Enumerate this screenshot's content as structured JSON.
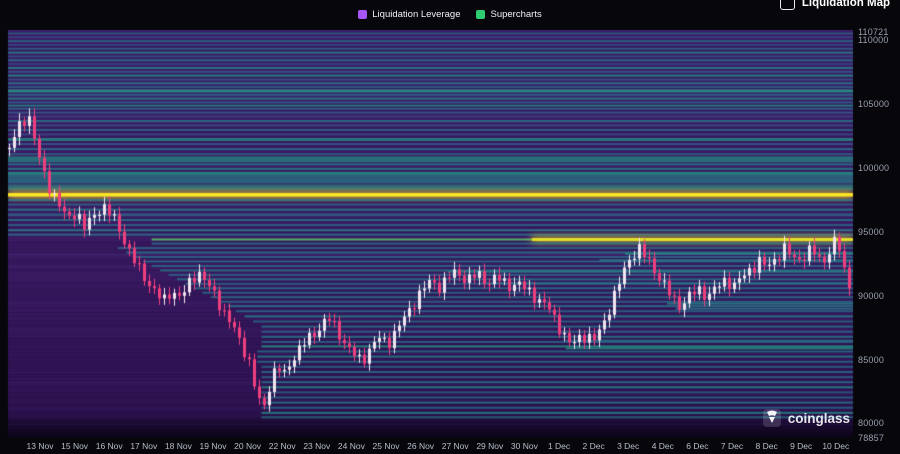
{
  "top_right": {
    "label": "Liquidation Map"
  },
  "legend": {
    "items": [
      {
        "label": "Liquidation Leverage",
        "color": "#a855f7"
      },
      {
        "label": "Supercharts",
        "color": "#2ecc71"
      }
    ]
  },
  "watermark": {
    "text": "coinglass"
  },
  "chart_data": {
    "type": "heatmap",
    "overlay": "candlestick",
    "colormap": "viridis",
    "title": "",
    "y_axis": {
      "min": 78857,
      "max": 110721,
      "labels": [
        110721,
        110000,
        105000,
        100000,
        95000,
        90000,
        85000,
        80000,
        78857
      ]
    },
    "x_axis": {
      "labels": [
        "13 Nov",
        "15 Nov",
        "16 Nov",
        "17 Nov",
        "18 Nov",
        "19 Nov",
        "20 Nov",
        "22 Nov",
        "23 Nov",
        "24 Nov",
        "25 Nov",
        "26 Nov",
        "27 Nov",
        "29 Nov",
        "30 Nov",
        "1 Dec",
        "2 Dec",
        "3 Dec",
        "4 Dec",
        "6 Dec",
        "7 Dec",
        "8 Dec",
        "9 Dec",
        "10 Dec"
      ]
    },
    "highlight_lines": [
      {
        "price": 97820,
        "color": "#f5ef3c",
        "note": "brightest liquidation cluster, full width"
      },
      {
        "price": 94320,
        "color": "#b8e03a",
        "note": "bright cluster from ~17 Nov to right edge"
      }
    ],
    "candle_colors": {
      "up": "#f3e6f0",
      "down": "#ef3f7d"
    },
    "background_color": "#38175f",
    "price_path": [
      [
        0.0,
        101500
      ],
      [
        0.008,
        102600
      ],
      [
        0.016,
        103600
      ],
      [
        0.022,
        104300
      ],
      [
        0.03,
        102200
      ],
      [
        0.038,
        99800
      ],
      [
        0.048,
        98400
      ],
      [
        0.058,
        97200
      ],
      [
        0.068,
        95800
      ],
      [
        0.079,
        96600
      ],
      [
        0.09,
        95100
      ],
      [
        0.1,
        96200
      ],
      [
        0.11,
        97000
      ],
      [
        0.121,
        96200
      ],
      [
        0.132,
        94900
      ],
      [
        0.142,
        93400
      ],
      [
        0.152,
        92100
      ],
      [
        0.162,
        91200
      ],
      [
        0.172,
        90300
      ],
      [
        0.182,
        89400
      ],
      [
        0.192,
        90400
      ],
      [
        0.203,
        89700
      ],
      [
        0.213,
        90900
      ],
      [
        0.223,
        91900
      ],
      [
        0.233,
        90900
      ],
      [
        0.245,
        89800
      ],
      [
        0.255,
        88500
      ],
      [
        0.265,
        87400
      ],
      [
        0.275,
        86100
      ],
      [
        0.284,
        84700
      ],
      [
        0.292,
        82300
      ],
      [
        0.3,
        80900
      ],
      [
        0.308,
        82900
      ],
      [
        0.316,
        84400
      ],
      [
        0.325,
        83700
      ],
      [
        0.335,
        85000
      ],
      [
        0.345,
        85900
      ],
      [
        0.355,
        86600
      ],
      [
        0.367,
        87400
      ],
      [
        0.377,
        88200
      ],
      [
        0.387,
        87300
      ],
      [
        0.397,
        86200
      ],
      [
        0.407,
        85300
      ],
      [
        0.417,
        84800
      ],
      [
        0.427,
        85800
      ],
      [
        0.437,
        86600
      ],
      [
        0.448,
        86200
      ],
      [
        0.458,
        87200
      ],
      [
        0.468,
        88200
      ],
      [
        0.478,
        89300
      ],
      [
        0.489,
        90400
      ],
      [
        0.5,
        91100
      ],
      [
        0.51,
        90600
      ],
      [
        0.52,
        91400
      ],
      [
        0.53,
        91800
      ],
      [
        0.542,
        91100
      ],
      [
        0.554,
        91600
      ],
      [
        0.565,
        91000
      ],
      [
        0.578,
        91300
      ],
      [
        0.59,
        90700
      ],
      [
        0.6,
        90900
      ],
      [
        0.612,
        90400
      ],
      [
        0.625,
        89700
      ],
      [
        0.64,
        88800
      ],
      [
        0.653,
        87200
      ],
      [
        0.665,
        85950
      ],
      [
        0.677,
        86900
      ],
      [
        0.693,
        86400
      ],
      [
        0.705,
        88100
      ],
      [
        0.716,
        89900
      ],
      [
        0.726,
        91600
      ],
      [
        0.734,
        92900
      ],
      [
        0.745,
        93550
      ],
      [
        0.755,
        92800
      ],
      [
        0.765,
        91800
      ],
      [
        0.775,
        90700
      ],
      [
        0.785,
        89700
      ],
      [
        0.795,
        89100
      ],
      [
        0.805,
        89900
      ],
      [
        0.816,
        90400
      ],
      [
        0.827,
        89900
      ],
      [
        0.838,
        90600
      ],
      [
        0.848,
        91200
      ],
      [
        0.858,
        90700
      ],
      [
        0.868,
        91400
      ],
      [
        0.878,
        92100
      ],
      [
        0.888,
        92600
      ],
      [
        0.897,
        92100
      ],
      [
        0.908,
        93000
      ],
      [
        0.918,
        93600
      ],
      [
        0.928,
        92800
      ],
      [
        0.938,
        92900
      ],
      [
        0.95,
        93500
      ],
      [
        0.962,
        92500
      ],
      [
        0.972,
        93600
      ],
      [
        0.98,
        94400
      ],
      [
        0.986,
        92300
      ],
      [
        0.993,
        91000
      ],
      [
        1.0,
        90200
      ]
    ],
    "liquidity_bands": [
      [
        110450,
        0,
        0.42,
        2
      ],
      [
        110150,
        0,
        0.3,
        2
      ],
      [
        109850,
        0,
        0.48,
        2
      ],
      [
        109550,
        0,
        0.34,
        2
      ],
      [
        109250,
        0,
        0.44,
        2
      ],
      [
        108950,
        0,
        0.56,
        2
      ],
      [
        108650,
        0,
        0.36,
        2
      ],
      [
        108350,
        0,
        0.5,
        2
      ],
      [
        108050,
        0,
        0.33,
        2
      ],
      [
        107750,
        0,
        0.56,
        2
      ],
      [
        107450,
        0,
        0.42,
        2
      ],
      [
        107150,
        0,
        0.6,
        2
      ],
      [
        106850,
        0,
        0.38,
        2
      ],
      [
        106550,
        0,
        0.52,
        2
      ],
      [
        106250,
        0,
        0.44,
        2
      ],
      [
        105950,
        0,
        0.64,
        3
      ],
      [
        105650,
        0,
        0.48,
        2
      ],
      [
        105350,
        0,
        0.55,
        2
      ],
      [
        105050,
        0,
        0.42,
        2
      ],
      [
        104800,
        0,
        0.58,
        2
      ],
      [
        104550,
        0,
        0.46,
        2
      ],
      [
        104250,
        0,
        0.4,
        2
      ],
      [
        103950,
        0,
        0.32,
        2
      ],
      [
        103600,
        0,
        0.52,
        2
      ],
      [
        103250,
        0,
        0.38,
        2
      ],
      [
        102900,
        0,
        0.48,
        2
      ],
      [
        102550,
        0,
        0.34,
        2
      ],
      [
        102150,
        0,
        0.58,
        3
      ],
      [
        101800,
        0,
        0.4,
        2
      ],
      [
        101400,
        0,
        0.5,
        2
      ],
      [
        101000,
        0,
        0.44,
        2
      ],
      [
        100600,
        0,
        0.62,
        6
      ],
      [
        100200,
        0,
        0.52,
        2
      ],
      [
        99850,
        0,
        0.55,
        2
      ],
      [
        99500,
        0,
        0.6,
        3
      ],
      [
        99050,
        0,
        0.55,
        9
      ],
      [
        98400,
        0,
        0.58,
        6
      ],
      [
        97820,
        0,
        1.0,
        3
      ],
      [
        97400,
        0,
        0.52,
        2
      ],
      [
        97050,
        0,
        0.46,
        2
      ],
      [
        96650,
        0,
        0.55,
        2
      ],
      [
        96250,
        0,
        0.44,
        3
      ],
      [
        95850,
        0,
        0.52,
        2
      ],
      [
        95450,
        0,
        0.48,
        2
      ],
      [
        95050,
        0,
        0.55,
        2
      ],
      [
        94700,
        0,
        0.5,
        2
      ],
      [
        94320,
        0.17,
        0.78,
        2,
        0.62
      ],
      [
        94320,
        0.62,
        0.97,
        2.5,
        1
      ],
      [
        94000,
        0.17,
        0.5,
        2
      ],
      [
        93650,
        0.13,
        0.46,
        2
      ],
      [
        93300,
        0.14,
        0.52,
        2
      ],
      [
        92950,
        0.15,
        0.46,
        2
      ],
      [
        92600,
        0.16,
        0.5,
        2
      ],
      [
        92250,
        0.17,
        0.46,
        2
      ],
      [
        91900,
        0.18,
        0.52,
        2
      ],
      [
        91550,
        0.19,
        0.46,
        2
      ],
      [
        91200,
        0.2,
        0.52,
        2
      ],
      [
        90850,
        0.21,
        0.46,
        2
      ],
      [
        90500,
        0.22,
        0.5,
        2
      ],
      [
        90150,
        0.23,
        0.46,
        2
      ],
      [
        89800,
        0.24,
        0.5,
        2
      ],
      [
        89450,
        0.25,
        0.46,
        2
      ],
      [
        89100,
        0.26,
        0.52,
        2
      ],
      [
        88700,
        0.27,
        0.46,
        2
      ],
      [
        88300,
        0.28,
        0.55,
        2
      ],
      [
        87900,
        0.29,
        0.46,
        2
      ],
      [
        87500,
        0.3,
        0.5,
        2
      ],
      [
        87100,
        0.3,
        0.46,
        2
      ],
      [
        86700,
        0.3,
        0.52,
        2
      ],
      [
        86300,
        0.3,
        0.46,
        2
      ],
      [
        85950,
        0.3,
        0.62,
        2
      ],
      [
        85550,
        0.295,
        0.5,
        2
      ],
      [
        85150,
        0.295,
        0.55,
        2
      ],
      [
        84750,
        0.295,
        0.5,
        2
      ],
      [
        84350,
        0.3,
        0.46,
        2
      ],
      [
        83950,
        0.3,
        0.5,
        2
      ],
      [
        83550,
        0.3,
        0.44,
        2
      ],
      [
        83150,
        0.3,
        0.5,
        2
      ],
      [
        82750,
        0.3,
        0.58,
        2
      ],
      [
        82350,
        0.3,
        0.44,
        2
      ],
      [
        81950,
        0.3,
        0.48,
        2
      ],
      [
        81550,
        0.3,
        0.52,
        2
      ],
      [
        81150,
        0.3,
        0.46,
        2
      ],
      [
        80750,
        0.3,
        0.58,
        2
      ],
      [
        80400,
        0.3,
        0.5,
        2
      ],
      [
        85800,
        0.66,
        0.6,
        2
      ],
      [
        86400,
        0.66,
        0.5,
        2
      ],
      [
        88900,
        0.79,
        0.52,
        2
      ],
      [
        89300,
        0.78,
        0.55,
        2
      ],
      [
        92700,
        0.7,
        0.52,
        2
      ],
      [
        93200,
        0.73,
        0.58,
        2
      ],
      [
        91800,
        0.52,
        0.55,
        2
      ],
      [
        90900,
        0.56,
        0.5,
        2
      ]
    ]
  }
}
